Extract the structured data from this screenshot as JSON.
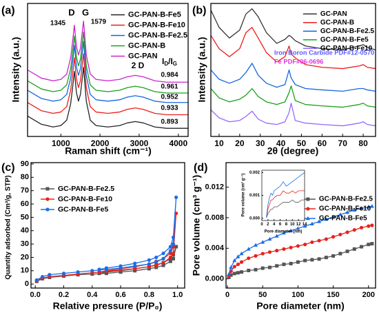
{
  "chart_data": [
    {
      "type": "line",
      "panel_label": "(a)",
      "x_label": "Raman shift (cm⁻¹)",
      "y_label": "Intensity (a.u.)",
      "xlim": [
        150,
        4250
      ],
      "ylim": [
        0,
        9.8
      ],
      "xticks": [
        1000,
        2000,
        3000,
        4000
      ],
      "x": [
        150,
        500,
        800,
        1000,
        1150,
        1250,
        1300,
        1345,
        1400,
        1450,
        1500,
        1579,
        1650,
        1750,
        1900,
        2200,
        2500,
        2700,
        2900,
        3100,
        3400,
        3700,
        4250
      ],
      "series": [
        {
          "name": "GC-PAN-B-Fe5",
          "color": "#222222",
          "values": [
            1.5,
            0.9,
            0.7,
            0.8,
            1.2,
            2.4,
            3.6,
            4.8,
            3.2,
            2.6,
            3.1,
            5.1,
            2.6,
            1.2,
            0.8,
            0.7,
            0.8,
            1.0,
            1.1,
            1.0,
            0.7,
            0.6,
            0.6
          ]
        },
        {
          "name": "GC-PAN-B-Fe10",
          "color": "#ee1c1c",
          "values": [
            2.5,
            1.9,
            1.7,
            1.8,
            2.2,
            3.4,
            4.6,
            5.8,
            4.2,
            3.6,
            4.1,
            6.1,
            3.6,
            2.2,
            1.8,
            1.7,
            1.8,
            2.0,
            2.1,
            2.0,
            1.7,
            1.6,
            1.6
          ]
        },
        {
          "name": "GC-PAN-B-Fe2.5",
          "color": "#1565e0",
          "values": [
            3.4,
            2.8,
            2.6,
            2.7,
            3.1,
            4.3,
            5.5,
            6.7,
            5.1,
            4.5,
            5.0,
            7.0,
            4.5,
            3.1,
            2.7,
            2.6,
            2.7,
            2.9,
            3.0,
            2.9,
            2.6,
            2.5,
            2.5
          ]
        },
        {
          "name": "GC-PAN-B",
          "color": "#1aa01a",
          "values": [
            4.1,
            3.5,
            3.3,
            3.4,
            3.8,
            5.0,
            6.2,
            7.4,
            5.8,
            5.2,
            5.7,
            7.7,
            5.2,
            3.8,
            3.4,
            3.3,
            3.4,
            3.6,
            3.7,
            3.6,
            3.3,
            3.2,
            3.2
          ]
        },
        {
          "name": "GC-PAN",
          "color": "#cc22cc",
          "values": [
            4.9,
            4.3,
            4.1,
            4.2,
            4.6,
            5.8,
            7.0,
            8.2,
            6.6,
            6.0,
            6.5,
            8.5,
            6.0,
            4.6,
            4.2,
            4.1,
            4.2,
            4.4,
            4.5,
            4.4,
            4.1,
            4.0,
            4.0
          ]
        }
      ],
      "legend": "upper right",
      "peak_labels": [
        "D",
        "G",
        "1345",
        "1579",
        "2 D"
      ],
      "ratio_label": [
        "I",
        "D",
        "/I",
        "G"
      ],
      "ratio_values": [
        0.984,
        0.961,
        0.952,
        0.933,
        0.893
      ]
    },
    {
      "type": "line",
      "panel_label": "(b)",
      "x_label": "2θ (degree)",
      "y_label": "Intensity (a.u.)",
      "xlim": [
        6,
        86
      ],
      "ylim": [
        0,
        10
      ],
      "xticks": [
        10,
        20,
        30,
        40,
        50,
        60,
        70,
        80
      ],
      "x": [
        6,
        10,
        15,
        20,
        23,
        26,
        29,
        33,
        38,
        42,
        44,
        45,
        47,
        52,
        60,
        70,
        78,
        80,
        82,
        86
      ],
      "series": [
        {
          "name": "GC-PAN",
          "color": "#333333",
          "values": [
            9.5,
            8.2,
            7.4,
            8.0,
            9.2,
            9.6,
            9.0,
            7.8,
            7.0,
            7.3,
            7.6,
            7.5,
            7.2,
            6.8,
            6.6,
            6.5,
            6.8,
            6.9,
            6.7,
            6.5
          ]
        },
        {
          "name": "GC-PAN-B",
          "color": "#ee1c1c",
          "values": [
            7.6,
            6.6,
            6.0,
            6.6,
            7.8,
            8.2,
            7.4,
            6.3,
            5.6,
            6.0,
            6.8,
            6.2,
            5.9,
            5.4,
            5.2,
            5.1,
            5.3,
            5.4,
            5.2,
            5.1
          ]
        },
        {
          "name": "GC-PAN-B-Fe2.5",
          "color": "#1565e0",
          "values": [
            5.0,
            4.3,
            4.0,
            4.3,
            4.8,
            5.5,
            4.6,
            4.0,
            3.7,
            3.9,
            5.0,
            4.4,
            3.9,
            3.6,
            3.5,
            3.4,
            3.6,
            3.6,
            3.5,
            3.4
          ]
        },
        {
          "name": "GC-PAN-B-Fe5",
          "color": "#1aa01a",
          "values": [
            3.6,
            2.9,
            2.6,
            2.8,
            3.1,
            3.6,
            3.0,
            2.6,
            2.4,
            2.6,
            3.3,
            3.8,
            2.7,
            2.4,
            2.3,
            2.2,
            2.4,
            2.5,
            2.3,
            2.2
          ]
        },
        {
          "name": "GC-PAN-B-Fe10",
          "color": "#9966ff",
          "values": [
            2.0,
            1.4,
            1.1,
            1.2,
            1.5,
            1.9,
            1.3,
            1.0,
            0.9,
            1.1,
            1.8,
            2.5,
            1.2,
            1.0,
            0.9,
            0.8,
            1.0,
            1.1,
            0.9,
            0.8
          ]
        }
      ],
      "legend": "upper right",
      "references": [
        {
          "text": "Iron Boron Carbide PDF#12-0570",
          "color": "#5b5bff"
        },
        {
          "text": "Fe PDF#06-0696",
          "color": "#e033e0"
        }
      ]
    },
    {
      "type": "line",
      "panel_label": "(c)",
      "x_label": "Relative pressure (P/P₀)",
      "y_label": "Quantity adsorbed (Cm³/g, STP)",
      "xlim": [
        -0.03,
        1.05
      ],
      "ylim": [
        -3,
        91
      ],
      "xticks": [
        {
          "value": 0,
          "label": "0.0"
        },
        0.2,
        0.4,
        0.6,
        0.8,
        {
          "value": 1,
          "label": "1.0"
        }
      ],
      "yticks": [
        0,
        10,
        20,
        30,
        40,
        50,
        60,
        70,
        80,
        90
      ],
      "x": [
        0.01,
        0.05,
        0.1,
        0.2,
        0.3,
        0.4,
        0.5,
        0.6,
        0.7,
        0.8,
        0.85,
        0.9,
        0.95,
        0.97,
        0.99,
        0.97,
        0.95,
        0.9,
        0.85,
        0.8,
        0.7,
        0.6,
        0.5,
        0.45
      ],
      "series": [
        {
          "name": "GC-PAN-B-Fe2.5",
          "color": "#555555",
          "marker": "square",
          "values": [
            2,
            4,
            5,
            6,
            7,
            7.5,
            8,
            9,
            10,
            11.5,
            12.5,
            14,
            17,
            19,
            28,
            22,
            19,
            16,
            14.5,
            13,
            11.5,
            10,
            9,
            8
          ]
        },
        {
          "name": "GC-PAN-B-Fe10",
          "color": "#e8221b",
          "marker": "circle",
          "values": [
            2.5,
            4.5,
            5.5,
            6.5,
            7.5,
            8.5,
            9.5,
            10.5,
            11.5,
            13,
            14,
            16,
            20,
            23,
            53,
            28,
            23,
            19,
            17,
            15,
            13,
            11.5,
            10,
            9
          ]
        },
        {
          "name": "GC-PAN-B-Fe5",
          "color": "#1a6ee8",
          "marker": "circle",
          "values": [
            3,
            5.5,
            7,
            8,
            9,
            10,
            11,
            12,
            13.5,
            15,
            16.5,
            19,
            25,
            30,
            65,
            35,
            28,
            23,
            20,
            18,
            15.5,
            13.5,
            12,
            11
          ]
        }
      ],
      "legend": "center left"
    },
    {
      "type": "line",
      "panel_label": "(d)",
      "x_label": "Pore diameter (nm)",
      "y_label": "Pore volume (cm³ g⁻¹)",
      "xlim": [
        -2,
        210
      ],
      "ylim": [
        -0.0012,
        0.0152
      ],
      "xticks": [
        0,
        50,
        100,
        150,
        200
      ],
      "yticks": [
        {
          "value": 0,
          "label": "0.000"
        },
        0.004,
        0.008,
        0.012
      ],
      "x": [
        2,
        5,
        10,
        15,
        20,
        30,
        40,
        50,
        60,
        70,
        80,
        90,
        100,
        110,
        120,
        130,
        140,
        150,
        160,
        170,
        180,
        190,
        200,
        205
      ],
      "series": [
        {
          "name": "GC-PAN-B-Fe2.5",
          "color": "#555555",
          "marker": "square",
          "values": [
            0.0002,
            0.0005,
            0.0007,
            0.0008,
            0.0009,
            0.0011,
            0.0012,
            0.0014,
            0.0015,
            0.0017,
            0.0019,
            0.002,
            0.0022,
            0.0024,
            0.0025,
            0.0026,
            0.0028,
            0.003,
            0.0033,
            0.0036,
            0.0039,
            0.0042,
            0.0045,
            0.0046
          ]
        },
        {
          "name": "GC-PAN-B-Fe10",
          "color": "#e8221b",
          "marker": "circle",
          "values": [
            0.0004,
            0.001,
            0.0016,
            0.0019,
            0.0022,
            0.0027,
            0.003,
            0.0033,
            0.0035,
            0.0037,
            0.0039,
            0.0041,
            0.0043,
            0.0045,
            0.0048,
            0.005,
            0.0052,
            0.0055,
            0.0058,
            0.0061,
            0.0064,
            0.0067,
            0.0069,
            0.007
          ]
        },
        {
          "name": "GC-PAN-B-Fe5",
          "color": "#1a6ee8",
          "marker": "triangle",
          "values": [
            0.0006,
            0.0015,
            0.0024,
            0.0029,
            0.0033,
            0.0039,
            0.0044,
            0.0048,
            0.0052,
            0.0056,
            0.006,
            0.0063,
            0.0066,
            0.0069,
            0.0072,
            0.0075,
            0.0078,
            0.0081,
            0.0084,
            0.0087,
            0.009,
            0.0092,
            0.0094,
            0.0095
          ]
        }
      ],
      "legend": "upper right"
    },
    {
      "type": "line",
      "x_label": "Pore diameter (nm)",
      "y_label": "Pore volume (cm³ g⁻¹)",
      "xlim": [
        0,
        14
      ],
      "ylim": [
        -0.0001,
        0.0021
      ],
      "xticks": [
        0,
        2,
        4,
        6,
        8,
        10,
        12,
        14
      ],
      "yticks": [
        {
          "value": 0,
          "label": "0.000"
        },
        0.001,
        0.002
      ],
      "x": [
        1.5,
        2,
        2.5,
        3,
        3.5,
        4,
        5,
        6,
        7,
        8,
        9,
        10,
        11,
        12,
        13,
        14
      ],
      "series": [
        {
          "color": "#555555",
          "values": [
            2e-05,
            0.0002,
            0.0003,
            0.0004,
            0.0004,
            0.0005,
            0.0005,
            0.0006,
            0.0007,
            0.0007,
            0.0007,
            0.0008,
            0.0007,
            0.0007,
            0.0008,
            0.0008
          ]
        },
        {
          "color": "#e8221b",
          "values": [
            3e-05,
            0.0004,
            0.0006,
            0.0008,
            0.0008,
            0.0009,
            0.001,
            0.001,
            0.0012,
            0.0011,
            0.0011,
            0.0012,
            0.0011,
            0.0012,
            0.0012,
            0.0012
          ]
        },
        {
          "color": "#1a6ee8",
          "values": [
            5e-05,
            0.0006,
            0.0009,
            0.0011,
            0.001,
            0.0012,
            0.0013,
            0.0014,
            0.0016,
            0.0014,
            0.0015,
            0.0016,
            0.0017,
            0.0018,
            0.0019,
            0.002
          ]
        }
      ]
    }
  ]
}
